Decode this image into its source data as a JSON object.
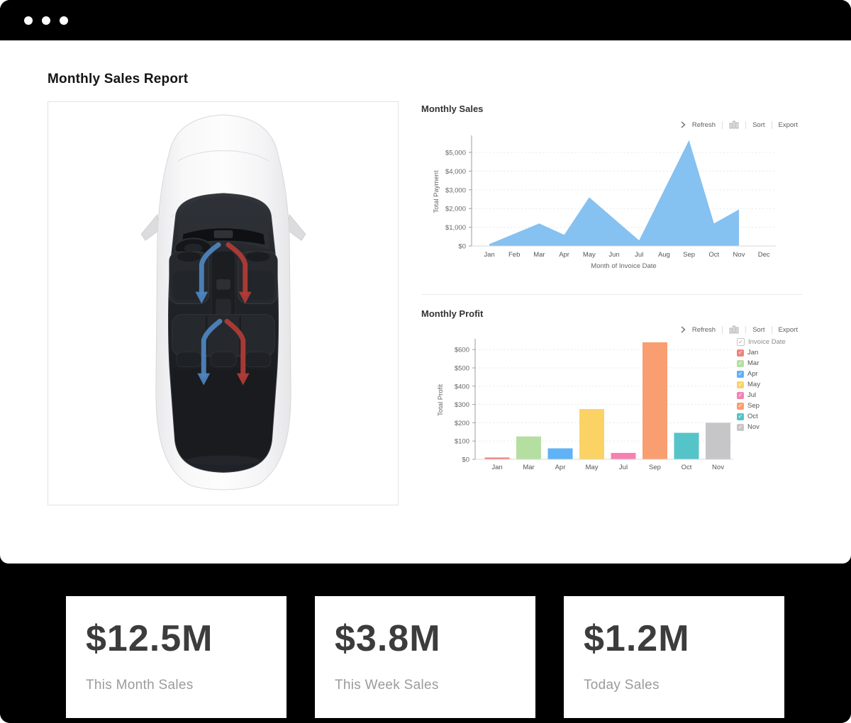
{
  "window": {
    "control_dots": 3
  },
  "header": {
    "title": "Monthly Sales Report"
  },
  "toolbar": {
    "refresh": "Refresh",
    "sort": "Sort",
    "export": "Export"
  },
  "icons": {
    "window_dots": "window-menu-dots",
    "chevron": "chevron-right-icon",
    "chart_type": "column-chart-icon",
    "check": "✓"
  },
  "car_panel": {
    "description": "top view of white car with dark glass roof and blue/red climate airflow arrows"
  },
  "chart_data": [
    {
      "type": "area",
      "title": "Monthly Sales",
      "xlabel": "Month of Invoice Date",
      "ylabel": "Total Payment",
      "x_ticks": [
        "Jan",
        "Feb",
        "Mar",
        "Apr",
        "May",
        "Jun",
        "Jul",
        "Aug",
        "Sep",
        "Oct",
        "Nov",
        "Dec"
      ],
      "y_ticks": [
        "$0",
        "$1,000",
        "$2,000",
        "$3,000",
        "$4,000",
        "$5,000"
      ],
      "y_tick_step": 1000,
      "ylim": [
        0,
        5800
      ],
      "grid": "dotted horizontal",
      "fill_color": "#85C1F1",
      "points": [
        [
          "Jan",
          100
        ],
        [
          "Mar",
          1200
        ],
        [
          "Apr",
          600
        ],
        [
          "May",
          2600
        ],
        [
          "Jul",
          300
        ],
        [
          "Sep",
          5650
        ],
        [
          "Oct",
          1200
        ],
        [
          "Nov",
          1950
        ]
      ]
    },
    {
      "type": "bar",
      "title": "Monthly Profit",
      "xlabel": "",
      "ylabel": "Total Profit",
      "categories": [
        "Jan",
        "Mar",
        "Apr",
        "May",
        "Jul",
        "Sep",
        "Oct",
        "Nov"
      ],
      "values": [
        10,
        125,
        60,
        275,
        35,
        640,
        145,
        200
      ],
      "colors": [
        "#F4807B",
        "#B5DFA1",
        "#5FB2F6",
        "#FBD365",
        "#F77FB2",
        "#F99E70",
        "#55C4C8",
        "#C6C6C8"
      ],
      "y_ticks": [
        "$0",
        "$100",
        "$200",
        "$300",
        "$400",
        "$500",
        "$600"
      ],
      "y_tick_step": 100,
      "ylim": [
        0,
        660
      ],
      "grid": "dotted horizontal",
      "legend": {
        "header": "Invoice Date",
        "position": "right",
        "items": [
          {
            "label": "Jan",
            "color": "#F4807B"
          },
          {
            "label": "Mar",
            "color": "#B5DFA1"
          },
          {
            "label": "Apr",
            "color": "#5FB2F6"
          },
          {
            "label": "May",
            "color": "#FBD365"
          },
          {
            "label": "Jul",
            "color": "#F77FB2"
          },
          {
            "label": "Sep",
            "color": "#F99E70"
          },
          {
            "label": "Oct",
            "color": "#55C4C8"
          },
          {
            "label": "Nov",
            "color": "#C6C6C8"
          }
        ]
      }
    }
  ],
  "cards": [
    {
      "value": "$12.5M",
      "label": "This Month Sales"
    },
    {
      "value": "$3.8M",
      "label": "This Week Sales"
    },
    {
      "value": "$1.2M",
      "label": "Today Sales"
    }
  ]
}
